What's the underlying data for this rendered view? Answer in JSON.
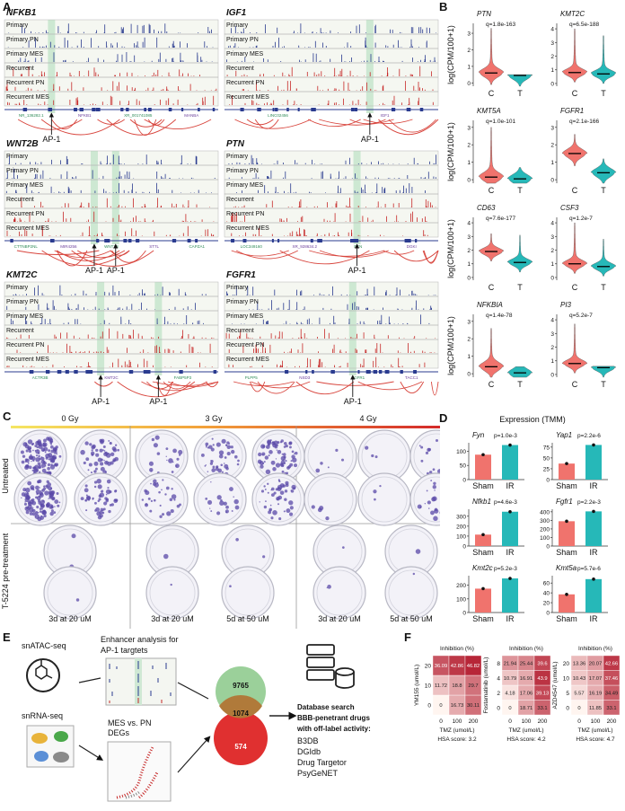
{
  "panel_labels": {
    "a": "A",
    "b": "B",
    "c": "C",
    "d": "D",
    "e": "E",
    "f": "F"
  },
  "panel_a": {
    "tracks": [
      "Primary",
      "Primary PN",
      "Primary MES",
      "Recurrent",
      "Recurrent PN",
      "Recurrent MES"
    ],
    "loci": [
      {
        "gene": "NFKB1",
        "annotations": [
          "NR_136282.1",
          "NFKB1",
          "XR_001741085",
          "MANBA"
        ],
        "ap1": [
          "AP-1"
        ]
      },
      {
        "gene": "IGF1",
        "annotations": [
          "LINC02456",
          "IGF1"
        ],
        "ap1": [
          "AP-1"
        ]
      },
      {
        "gene": "WNT2B",
        "annotations": [
          "CTTNBP2NL",
          "MIR4256",
          "WNT2B",
          "ST7L",
          "CAPZA1"
        ],
        "ap1": [
          "AP-1",
          "AP-1"
        ]
      },
      {
        "gene": "PTN",
        "annotations": [
          "LOC349160",
          "XR_928634.2",
          "PTN",
          "DGKI"
        ],
        "ap1": [
          "AP-1"
        ]
      },
      {
        "gene": "KMT2C",
        "annotations": [
          "ACTR3B",
          "KMT2C",
          "FABP5P3"
        ],
        "ap1": [
          "AP-1",
          "AP-1"
        ]
      },
      {
        "gene": "FGFR1",
        "annotations": [
          "PLPP5",
          "NSD3",
          "FGFR1",
          "TACC1"
        ],
        "ap1": [
          "AP-1"
        ]
      }
    ]
  },
  "panel_b": {
    "y_label": "log(CPM/100+1)",
    "groups": [
      "C",
      "T"
    ],
    "colors": [
      "#f0736d",
      "#26b8b8"
    ],
    "violins": [
      {
        "gene": "PTN",
        "q": "q=1.8e-163",
        "ylim": [
          -0.2,
          3.6
        ],
        "yticks": [
          0,
          1,
          2,
          3
        ],
        "medians": [
          0.6,
          0.45
        ],
        "maxima": [
          3.3,
          0.5
        ]
      },
      {
        "gene": "KMT2C",
        "q": "q=6.5e-188",
        "ylim": [
          -0.2,
          4.4
        ],
        "yticks": [
          0,
          1,
          2,
          3,
          4
        ],
        "medians": [
          0.8,
          0.7
        ],
        "maxima": [
          4.0,
          3.5
        ]
      },
      {
        "gene": "KMT5A",
        "q": "q=1.0e-101",
        "ylim": [
          -0.2,
          3.4
        ],
        "yticks": [
          0,
          1,
          2,
          3
        ],
        "medians": [
          0.15,
          0.05
        ],
        "maxima": [
          3.0,
          0.7
        ]
      },
      {
        "gene": "FGFR1",
        "q": "q=2.1e-166",
        "ylim": [
          -0.2,
          3.4
        ],
        "yticks": [
          0,
          1,
          2,
          3
        ],
        "medians": [
          1.5,
          0.4
        ],
        "maxima": [
          2.6,
          1.2
        ]
      },
      {
        "gene": "CD63",
        "q": "q=7.6e-177",
        "ylim": [
          -0.2,
          4.4
        ],
        "yticks": [
          0,
          1,
          2,
          3,
          4
        ],
        "medians": [
          1.9,
          1.1
        ],
        "maxima": [
          3.2,
          3.1
        ]
      },
      {
        "gene": "CSF3",
        "q": "q=1.2e-7",
        "ylim": [
          -0.2,
          4.4
        ],
        "yticks": [
          0,
          1,
          2,
          3,
          4
        ],
        "medians": [
          1.0,
          0.8
        ],
        "maxima": [
          4.0,
          2.8
        ]
      },
      {
        "gene": "NFKBIA",
        "q": "q=1.4e-78",
        "ylim": [
          -0.2,
          3.4
        ],
        "yticks": [
          0,
          1,
          2,
          3
        ],
        "medians": [
          0.4,
          0.05
        ],
        "maxima": [
          2.6,
          0.4
        ]
      },
      {
        "gene": "PI3",
        "q": "q=5.2e-7",
        "ylim": [
          -0.2,
          4.4
        ],
        "yticks": [
          0,
          1,
          2,
          3,
          4
        ],
        "medians": [
          0.8,
          0.5
        ],
        "maxima": [
          3.7,
          0.6
        ]
      }
    ]
  },
  "panel_c": {
    "doses": [
      "0 Gy",
      "3 Gy",
      "4 Gy"
    ],
    "rows": [
      "Untreated",
      "T-5224 pre-treatment"
    ],
    "treatments": [
      "3d at 20 uM",
      "3d at 20 uM",
      "5d at 50 uM",
      "3d at 20 uM",
      "5d at 50 uM"
    ]
  },
  "panel_d": {
    "title": "Expression (TMM)",
    "categories": [
      "Sham",
      "IR"
    ],
    "colors": [
      "#f0736d",
      "#26b8b8"
    ],
    "charts": [
      {
        "type": "bar",
        "gene": "Fyn",
        "p": "p=1.0e-3",
        "values": [
          88,
          122
        ],
        "ylim": [
          0,
          130
        ],
        "yticks": [
          0,
          50,
          100
        ]
      },
      {
        "type": "bar",
        "gene": "Yap1",
        "p": "p=2.2e-6",
        "values": [
          37,
          80
        ],
        "ylim": [
          0,
          85
        ],
        "yticks": [
          0,
          25,
          50,
          75
        ]
      },
      {
        "type": "bar",
        "gene": "Nfkb1",
        "p": "p=4.6e-3",
        "values": [
          115,
          345
        ],
        "ylim": [
          0,
          370
        ],
        "yticks": [
          0,
          100,
          200,
          300
        ]
      },
      {
        "type": "bar",
        "gene": "Fgfr1",
        "p": "p=2.2e-3",
        "values": [
          290,
          405
        ],
        "ylim": [
          0,
          430
        ],
        "yticks": [
          0,
          100,
          200,
          300,
          400
        ]
      },
      {
        "type": "bar",
        "gene": "Kmt2c",
        "p": "p=5.2e-3",
        "values": [
          175,
          250
        ],
        "ylim": [
          0,
          270
        ],
        "yticks": [
          0,
          100,
          200
        ]
      },
      {
        "type": "bar",
        "gene": "Kmt5a",
        "p": "p=5.7e-6",
        "values": [
          37,
          68
        ],
        "ylim": [
          0,
          75
        ],
        "yticks": [
          0,
          20,
          40,
          60
        ]
      }
    ]
  },
  "panel_e": {
    "inputs": [
      "snATAC-seq",
      "snRNA-seq"
    ],
    "enhancer": [
      "Enhancer analysis for",
      "AP-1 targtets"
    ],
    "degs": [
      "MES vs. PN",
      "DEGs"
    ],
    "venn": {
      "top": "9765",
      "overlap": "1074",
      "bottom": "574"
    },
    "search": [
      "Database search",
      "BBB-penetrant drugs",
      "with off-label activity:"
    ],
    "databases": [
      "B3DB",
      "DGIdb",
      "Drug Targetor",
      "PsyGeNET"
    ]
  },
  "panel_f": {
    "title": "Inhibition (%)",
    "x_label": "TMZ (umol/L)",
    "heatmaps": [
      {
        "drug": "YM155 (umol/L)",
        "xticks": [
          0,
          100,
          200
        ],
        "yticks": [
          0,
          10,
          20
        ],
        "cells": [
          [
            0,
            16.73,
            30.11
          ],
          [
            11.72,
            18.8,
            29.7
          ],
          [
            36.09,
            42.86,
            46.82
          ]
        ],
        "hsa": "HSA score: 3.2"
      },
      {
        "drug": "Fostamatinib (umol/L)",
        "xticks": [
          0,
          100,
          200
        ],
        "yticks": [
          0,
          2,
          4,
          8
        ],
        "cells": [
          [
            0,
            18.71,
            33.1
          ],
          [
            4.18,
            17.06,
            39.13
          ],
          [
            10.79,
            16.91,
            43.9
          ],
          [
            21.94,
            25.44,
            39.6
          ]
        ],
        "hsa": "HSA score: 4.2"
      },
      {
        "drug": "AZD4547 (umol/L)",
        "xticks": [
          0,
          100,
          200
        ],
        "yticks": [
          0,
          5,
          10,
          20
        ],
        "cells": [
          [
            0,
            11.85,
            33.1
          ],
          [
            5.57,
            16.19,
            34.49
          ],
          [
            10.43,
            17.07,
            37.46
          ],
          [
            13.36,
            20.07,
            42.66
          ]
        ],
        "hsa": "HSA score: 4.7"
      }
    ]
  }
}
